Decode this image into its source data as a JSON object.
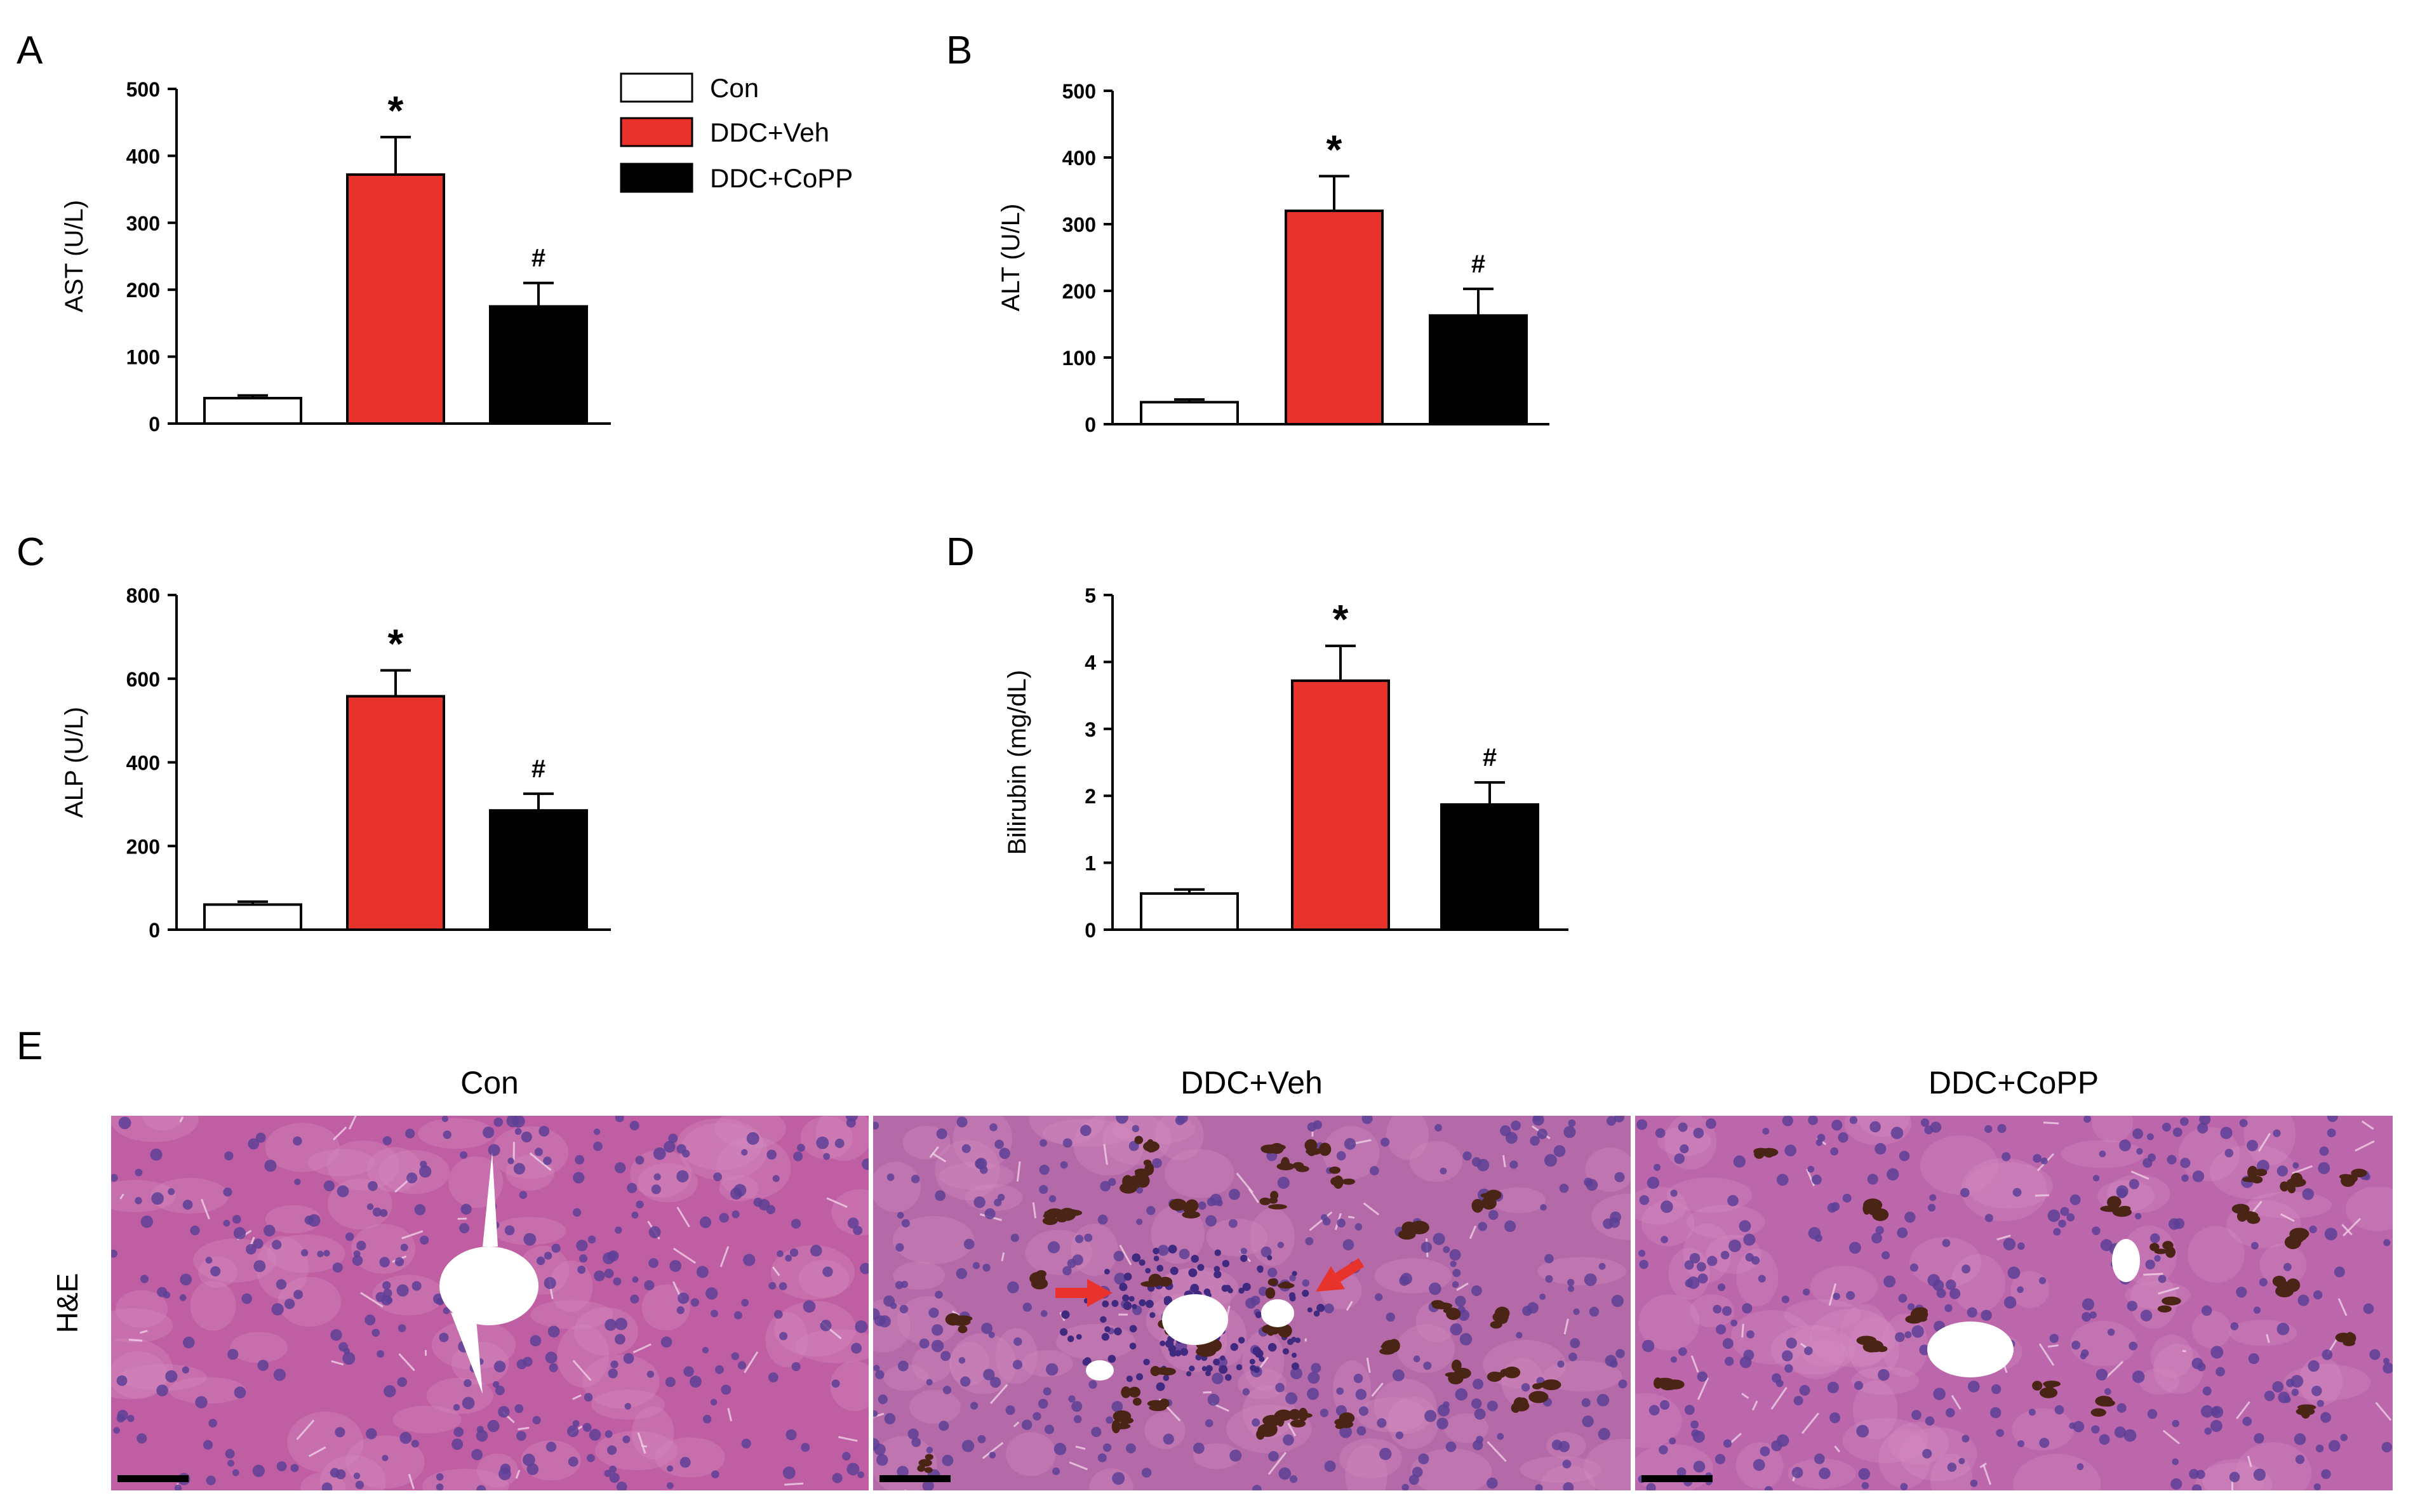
{
  "colors": {
    "con": "#ffffff",
    "ddc_veh": "#e8322c",
    "ddc_copp": "#000000",
    "axis": "#000000",
    "tissue_base": "#b95a9f",
    "nucleus": "#5b3c95",
    "pigment": "#4a2414",
    "arrow": "#e8322c"
  },
  "legend": {
    "items": [
      {
        "label": "Con",
        "color_key": "con"
      },
      {
        "label": "DDC+Veh",
        "color_key": "ddc_veh"
      },
      {
        "label": "DDC+CoPP",
        "color_key": "ddc_copp"
      }
    ]
  },
  "chart_data": [
    {
      "panel": "A",
      "type": "bar",
      "categories": [
        "Con",
        "DDC+Veh",
        "DDC+CoPP"
      ],
      "values": [
        38,
        372,
        175
      ],
      "errors": [
        4,
        56,
        35
      ],
      "annotations": [
        "",
        "*",
        "#"
      ],
      "ylabel": "AST (U/L)",
      "ylim": [
        0,
        500
      ],
      "yticks": [
        "0",
        "100",
        "200",
        "300",
        "400",
        "500"
      ]
    },
    {
      "panel": "B",
      "type": "bar",
      "categories": [
        "Con",
        "DDC+Veh",
        "DDC+CoPP"
      ],
      "values": [
        33,
        320,
        163
      ],
      "errors": [
        4,
        52,
        40
      ],
      "annotations": [
        "",
        "*",
        "#"
      ],
      "ylabel": "ALT (U/L)",
      "ylim": [
        0,
        500
      ],
      "yticks": [
        "0",
        "100",
        "200",
        "300",
        "400",
        "500"
      ]
    },
    {
      "panel": "C",
      "type": "bar",
      "categories": [
        "Con",
        "DDC+Veh",
        "DDC+CoPP"
      ],
      "values": [
        60,
        558,
        285
      ],
      "errors": [
        7,
        62,
        40
      ],
      "annotations": [
        "",
        "*",
        "#"
      ],
      "ylabel": "ALP (U/L)",
      "ylim": [
        0,
        800
      ],
      "yticks": [
        "0",
        "200",
        "400",
        "600",
        "800"
      ]
    },
    {
      "panel": "D",
      "type": "bar",
      "categories": [
        "Con",
        "DDC+Veh",
        "DDC+CoPP"
      ],
      "values": [
        0.54,
        3.72,
        1.87
      ],
      "errors": [
        0.06,
        0.52,
        0.33
      ],
      "annotations": [
        "",
        "*",
        "#"
      ],
      "ylabel": "Bilirubin (mg/dL)",
      "ylim": [
        0,
        5
      ],
      "yticks": [
        "0",
        "1",
        "2",
        "3",
        "4",
        "5"
      ]
    }
  ],
  "panel_e": {
    "label": "E",
    "row_label": "H&E",
    "titles": [
      "Con",
      "DDC+Veh",
      "DDC+CoPP"
    ]
  }
}
